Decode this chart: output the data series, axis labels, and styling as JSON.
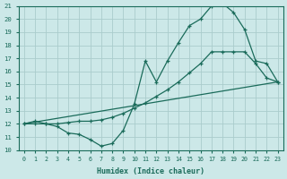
{
  "xlabel": "Humidex (Indice chaleur)",
  "xlim": [
    -0.5,
    23.5
  ],
  "ylim": [
    10,
    21
  ],
  "background_color": "#cce8e8",
  "grid_color": "#aacccc",
  "line_color": "#1a6b5a",
  "line1_x": [
    0,
    1,
    2,
    3,
    4,
    5,
    6,
    7,
    8,
    9,
    10,
    11,
    12,
    13,
    14,
    15,
    16,
    17,
    18,
    19,
    20,
    21,
    22,
    23
  ],
  "line1_y": [
    12.0,
    12.2,
    12.0,
    11.8,
    11.3,
    11.2,
    10.8,
    10.3,
    10.5,
    11.5,
    13.5,
    16.8,
    15.2,
    16.8,
    18.2,
    19.5,
    20.0,
    21.0,
    21.2,
    20.5,
    19.2,
    16.8,
    16.6,
    15.2
  ],
  "line1_has_markers": true,
  "line2_x": [
    0,
    1,
    2,
    3,
    4,
    5,
    6,
    7,
    8,
    9,
    10,
    11,
    12,
    13,
    14,
    15,
    16,
    17,
    18,
    19,
    20,
    21,
    22,
    23
  ],
  "line2_y": [
    12.0,
    12.0,
    12.0,
    12.0,
    12.1,
    12.2,
    12.2,
    12.3,
    12.5,
    12.8,
    13.2,
    13.6,
    14.1,
    14.6,
    15.2,
    15.9,
    16.6,
    17.5,
    17.5,
    17.5,
    17.5,
    16.6,
    15.5,
    15.2
  ],
  "line2_has_markers": true,
  "line3_x": [
    0,
    23
  ],
  "line3_y": [
    12.0,
    15.2
  ],
  "line3_has_markers": false,
  "yticks": [
    10,
    11,
    12,
    13,
    14,
    15,
    16,
    17,
    18,
    19,
    20,
    21
  ],
  "xticks": [
    0,
    1,
    2,
    3,
    4,
    5,
    6,
    7,
    8,
    9,
    10,
    11,
    12,
    13,
    14,
    15,
    16,
    17,
    18,
    19,
    20,
    21,
    22,
    23
  ]
}
